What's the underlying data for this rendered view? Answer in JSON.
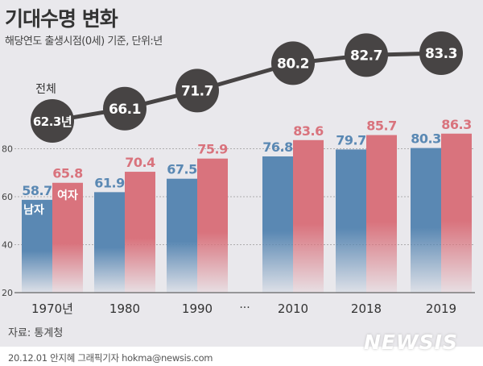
{
  "title": "기대수명 변화",
  "subtitle": "해당연도 출생시점(0세) 기준, 단위:년",
  "source": "자료: 통계청",
  "credit": "20.12.01 안지혜 그래픽기자 hokma@newsis.com",
  "logo": "NEWSIS",
  "chart_data": {
    "type": "bar",
    "categories": [
      "1970년",
      "1980",
      "1990",
      "2010",
      "2018",
      "2019"
    ],
    "gap_label": "···",
    "ylim": [
      20,
      90
    ],
    "yticks": [
      "20",
      "40",
      "60",
      "80"
    ],
    "grid": true,
    "series": [
      {
        "name": "남자",
        "color": "#5a88b3",
        "values": [
          58.7,
          61.9,
          67.5,
          76.8,
          79.7,
          80.3
        ]
      },
      {
        "name": "여자",
        "color": "#d9737d",
        "values": [
          65.8,
          70.4,
          75.9,
          83.6,
          85.7,
          86.3
        ]
      },
      {
        "name": "전체",
        "type": "line",
        "color": "#474444",
        "values": [
          62.3,
          66.1,
          71.7,
          80.2,
          82.7,
          83.3
        ],
        "first_label_suffix": "년"
      }
    ]
  }
}
